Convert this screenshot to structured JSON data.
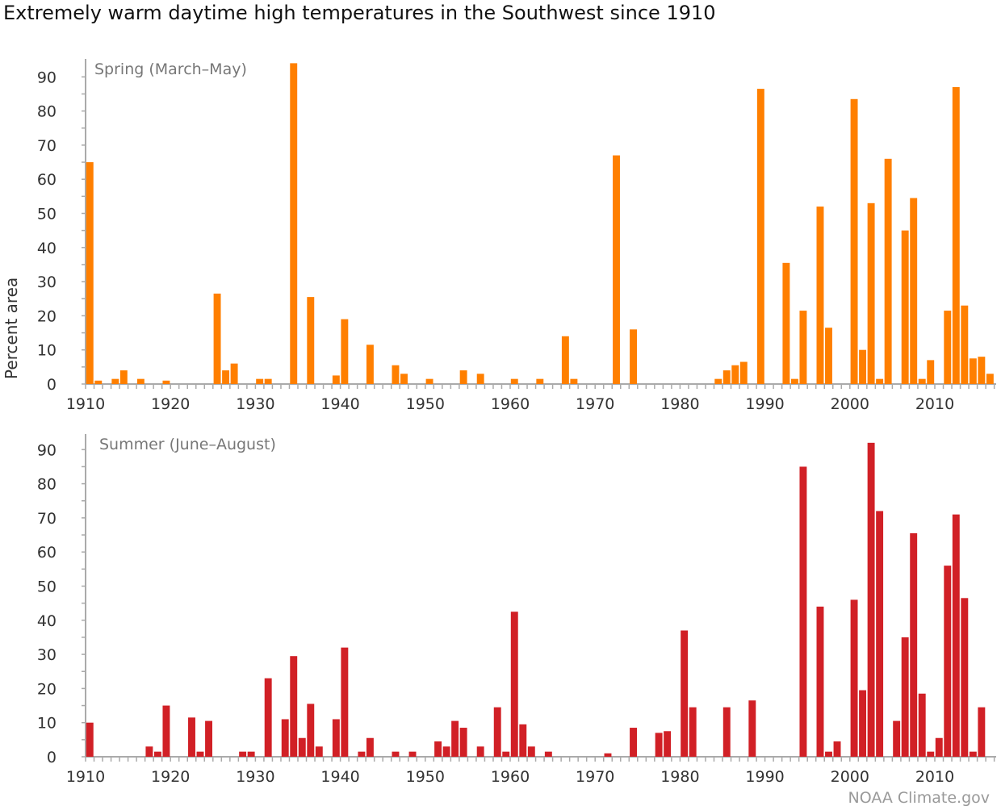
{
  "title": "Extremely warm daytime high temperatures in the Southwest since 1910",
  "credit": "NOAA Climate.gov",
  "colors": {
    "spring": "#ff7f00",
    "summer": "#d12026",
    "axis": "#aaaaaa"
  },
  "chart_data": [
    {
      "type": "bar",
      "panel": "Spring (March–May)",
      "ylabel": "Percent area",
      "xlabel": "",
      "ylim": [
        0,
        92
      ],
      "xlim": [
        1910,
        2016
      ],
      "yticks": [
        "0",
        "10",
        "20",
        "30",
        "40",
        "50",
        "60",
        "70",
        "80",
        "90"
      ],
      "xticks": [
        "1910",
        "1920",
        "1930",
        "1940",
        "1950",
        "1960",
        "1970",
        "1980",
        "1990",
        "2000",
        "2010"
      ],
      "x": [
        1910,
        1911,
        1913,
        1914,
        1916,
        1919,
        1925,
        1926,
        1927,
        1930,
        1931,
        1934,
        1936,
        1939,
        1940,
        1943,
        1946,
        1947,
        1950,
        1954,
        1956,
        1960,
        1963,
        1966,
        1967,
        1972,
        1974,
        1984,
        1985,
        1986,
        1987,
        1989,
        1992,
        1993,
        1994,
        1996,
        1997,
        2000,
        2001,
        2002,
        2003,
        2004,
        2006,
        2007,
        2008,
        2009,
        2011,
        2012,
        2013,
        2014,
        2015,
        2016
      ],
      "values": [
        65,
        1,
        1.5,
        4,
        1.5,
        1,
        26.5,
        4,
        6,
        1.5,
        1.5,
        94,
        25.5,
        2.5,
        19,
        11.5,
        5.5,
        3,
        1.5,
        4,
        3,
        1.5,
        1.5,
        14,
        1.5,
        67,
        16,
        1.5,
        4,
        5.5,
        6.5,
        86.5,
        35.5,
        1.5,
        21.5,
        52,
        16.5,
        83.5,
        10,
        53,
        1.5,
        66,
        45,
        54.5,
        1.5,
        7,
        21.5,
        87,
        23,
        7.5,
        8,
        3
      ]
    },
    {
      "type": "bar",
      "panel": "Summer (June–August)",
      "ylabel": "Percent area",
      "xlabel": "",
      "ylim": [
        0,
        92
      ],
      "xlim": [
        1910,
        2016
      ],
      "yticks": [
        "0",
        "10",
        "20",
        "30",
        "40",
        "50",
        "60",
        "70",
        "80",
        "90"
      ],
      "xticks": [
        "1910",
        "1920",
        "1930",
        "1940",
        "1950",
        "1960",
        "1970",
        "1980",
        "1990",
        "2000",
        "2010"
      ],
      "x": [
        1910,
        1917,
        1918,
        1919,
        1922,
        1923,
        1924,
        1928,
        1929,
        1931,
        1933,
        1934,
        1935,
        1936,
        1937,
        1939,
        1940,
        1942,
        1943,
        1946,
        1948,
        1951,
        1952,
        1953,
        1954,
        1956,
        1958,
        1959,
        1960,
        1961,
        1962,
        1964,
        1971,
        1974,
        1977,
        1978,
        1980,
        1981,
        1985,
        1988,
        1994,
        1996,
        1997,
        1998,
        2000,
        2001,
        2002,
        2003,
        2005,
        2006,
        2007,
        2008,
        2009,
        2010,
        2011,
        2012,
        2013,
        2014,
        2015
      ],
      "values": [
        10,
        3,
        1.5,
        15,
        11.5,
        1.5,
        10.5,
        1.5,
        1.5,
        23,
        11,
        29.5,
        5.5,
        15.5,
        3,
        11,
        32,
        1.5,
        5.5,
        1.5,
        1.5,
        4.5,
        3,
        10.5,
        8.5,
        3,
        14.5,
        1.5,
        42.5,
        9.5,
        3,
        1.5,
        1,
        8.5,
        7,
        7.5,
        37,
        14.5,
        14.5,
        16.5,
        85,
        44,
        1.5,
        4.5,
        46,
        19.5,
        92,
        72,
        10.5,
        35,
        65.5,
        18.5,
        1.5,
        5.5,
        56,
        71,
        46.5,
        1.5,
        14.5
      ]
    }
  ]
}
